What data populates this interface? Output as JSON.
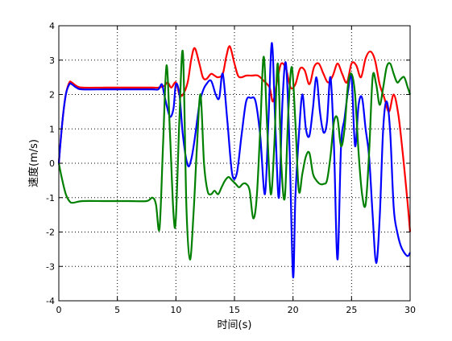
{
  "chart_data": {
    "type": "line",
    "title": "",
    "xlabel": "时间(s)",
    "ylabel": "速度(m/s)",
    "xlim": [
      0,
      30
    ],
    "ylim": [
      -4,
      4
    ],
    "xticks": [
      0,
      5,
      10,
      15,
      20,
      25,
      30
    ],
    "yticks": [
      -4,
      -3,
      -2,
      -1,
      0,
      1,
      2,
      3,
      4
    ],
    "xtick_labels": [
      "0",
      "5",
      "10",
      "15",
      "20",
      "25",
      "30"
    ],
    "ytick_labels": [
      "-4",
      "-3",
      "-2",
      "-1",
      "0",
      "1",
      "2",
      "3",
      "4"
    ],
    "grid": "dotted",
    "legend": "none",
    "series": [
      {
        "color": "#ff0000",
        "x": [
          0,
          0.3,
          0.6,
          0.9,
          1.1,
          1.5,
          2,
          4,
          6,
          8,
          8.5,
          9,
          9.3,
          9.6,
          10,
          10.3,
          10.6,
          11,
          11.3,
          11.6,
          12,
          12.3,
          12.6,
          13,
          13.3,
          13.6,
          14,
          14.3,
          14.6,
          15,
          15.3,
          15.6,
          16,
          16.5,
          17,
          17.5,
          18,
          18.3,
          18.7,
          19,
          19.4,
          19.8,
          20.2,
          20.6,
          21,
          21.4,
          21.8,
          22.2,
          22.6,
          23,
          23.4,
          23.8,
          24.2,
          24.6,
          25,
          25.4,
          25.8,
          26.2,
          26.6,
          27,
          27.4,
          27.8,
          28.2,
          28.6,
          29,
          29.4,
          29.8,
          30
        ],
        "y": [
          0,
          1.2,
          2,
          2.35,
          2.35,
          2.25,
          2.2,
          2.2,
          2.2,
          2.2,
          2.2,
          2.25,
          2.35,
          2.2,
          2.35,
          2.0,
          2.0,
          2.35,
          3.0,
          3.35,
          2.9,
          2.5,
          2.45,
          2.6,
          2.55,
          2.5,
          2.6,
          3.1,
          3.4,
          2.9,
          2.55,
          2.5,
          2.55,
          2.55,
          2.55,
          2.4,
          2.2,
          1.8,
          2.5,
          2.9,
          2.75,
          2.2,
          2.3,
          2.75,
          2.7,
          2.3,
          2.8,
          2.9,
          2.6,
          2.35,
          2.55,
          2.9,
          2.6,
          2.35,
          2.9,
          2.85,
          2.5,
          3.05,
          3.25,
          3.0,
          2.3,
          1.9,
          1.5,
          2.0,
          1.4,
          0.2,
          -1.2,
          -2.0
        ]
      },
      {
        "color": "#0000ff",
        "x": [
          0,
          0.3,
          0.6,
          0.9,
          1.1,
          1.5,
          2,
          4,
          6,
          8,
          8.5,
          8.8,
          9,
          9.2,
          9.5,
          9.8,
          10,
          10.3,
          10.6,
          11,
          11.3,
          11.6,
          12,
          12.3,
          12.6,
          13,
          13.4,
          13.7,
          14,
          14.4,
          14.8,
          15.2,
          15.6,
          16,
          16.4,
          16.8,
          17.2,
          17.6,
          17.9,
          18.2,
          18.5,
          18.8,
          19.1,
          19.4,
          19.7,
          20,
          20.2,
          20.5,
          20.8,
          21.1,
          21.4,
          21.7,
          22,
          22.3,
          22.6,
          22.9,
          23.2,
          23.5,
          23.8,
          24.1,
          24.4,
          24.7,
          25,
          25.3,
          25.6,
          25.9,
          26.2,
          26.5,
          26.8,
          27.1,
          27.4,
          27.7,
          28,
          28.3,
          28.6,
          28.9,
          29.2,
          29.5,
          29.8,
          30
        ],
        "y": [
          0,
          1.2,
          2,
          2.3,
          2.3,
          2.2,
          2.15,
          2.15,
          2.15,
          2.15,
          2.15,
          2.3,
          2.0,
          1.7,
          1.35,
          1.6,
          2.3,
          2.0,
          0.8,
          -0.05,
          0.1,
          0.7,
          1.7,
          2.1,
          2.3,
          2.4,
          2.0,
          1.9,
          2.6,
          1.2,
          -0.3,
          -0.3,
          0.8,
          1.8,
          1.9,
          1.8,
          0.8,
          -0.9,
          1.2,
          3.5,
          1.0,
          -1.0,
          1.8,
          2.9,
          0.5,
          -3.3,
          -1.0,
          0.8,
          2.0,
          1.0,
          0.8,
          1.6,
          2.5,
          1.5,
          0.9,
          1.2,
          2.5,
          0.5,
          -2.8,
          0.5,
          1.3,
          2.1,
          2.5,
          0.5,
          1.7,
          1.9,
          1.0,
          0.2,
          -1.5,
          -2.9,
          -1.6,
          1.0,
          1.8,
          0.9,
          -1.3,
          -2.0,
          -2.4,
          -2.6,
          -2.7,
          -2.6
        ]
      },
      {
        "color": "#008000",
        "x": [
          0,
          0.3,
          0.6,
          0.9,
          1.2,
          2,
          4,
          6,
          7.5,
          8,
          8.3,
          8.6,
          8.9,
          9.2,
          9.5,
          9.8,
          10,
          10.3,
          10.6,
          10.9,
          11.2,
          11.5,
          11.8,
          12.1,
          12.4,
          12.7,
          13,
          13.3,
          13.6,
          13.9,
          14.2,
          14.5,
          14.8,
          15.1,
          15.4,
          15.7,
          16,
          16.3,
          16.6,
          16.9,
          17.2,
          17.5,
          17.8,
          18.1,
          18.4,
          18.7,
          19,
          19.3,
          19.6,
          19.9,
          20.2,
          20.5,
          20.8,
          21.1,
          21.4,
          21.7,
          22,
          22.3,
          22.6,
          22.9,
          23.2,
          23.5,
          23.8,
          24.1,
          24.4,
          24.7,
          25,
          25.3,
          25.6,
          25.9,
          26.2,
          26.5,
          26.8,
          27.1,
          27.4,
          27.7,
          28,
          28.3,
          28.6,
          28.9,
          29.2,
          29.5,
          29.8,
          30
        ],
        "y": [
          0,
          -0.5,
          -0.9,
          -1.1,
          -1.15,
          -1.1,
          -1.1,
          -1.1,
          -1.1,
          -1.0,
          -1.2,
          -1.9,
          0.5,
          2.85,
          0.8,
          -1.5,
          -1.6,
          1.3,
          3.2,
          -1.3,
          -2.8,
          -1.5,
          0.5,
          2.0,
          0.0,
          -0.8,
          -0.9,
          -0.8,
          -0.9,
          -0.7,
          -0.5,
          -0.4,
          -0.5,
          -0.6,
          -0.7,
          -0.6,
          -0.6,
          -0.8,
          -1.6,
          -1.0,
          1.0,
          3.1,
          1.0,
          -0.9,
          0.5,
          2.9,
          0.0,
          -1.0,
          1.5,
          2.8,
          1.2,
          -0.8,
          -0.3,
          0.2,
          0.3,
          -0.3,
          -0.5,
          -0.6,
          -0.6,
          -0.5,
          0.2,
          1.2,
          1.3,
          0.5,
          1.0,
          2.3,
          2.6,
          2.0,
          0.3,
          -0.9,
          -1.2,
          0.3,
          2.5,
          2.3,
          1.7,
          2.2,
          2.8,
          2.9,
          2.6,
          2.35,
          2.45,
          2.5,
          2.2,
          2.0
        ]
      }
    ]
  }
}
